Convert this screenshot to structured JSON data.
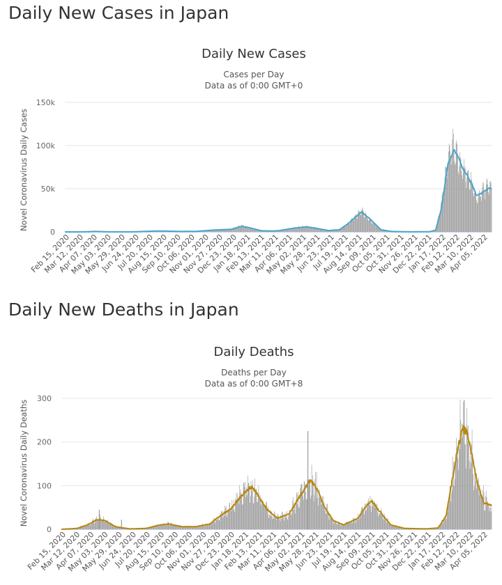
{
  "sections": [
    {
      "heading": "Daily New Cases in Japan"
    },
    {
      "heading": "Daily New Deaths in Japan"
    }
  ],
  "chart_data": [
    {
      "type": "bar",
      "title": "Daily New Cases",
      "subtitle": "Cases per Day",
      "subtitle2": "Data as of 0:00 GMT+0",
      "ylabel": "Novel Coronavirus Daily Cases",
      "ylim": [
        0,
        150000
      ],
      "yticks": [
        0,
        50000,
        100000,
        150000
      ],
      "ytick_labels": [
        "0",
        "50k",
        "100k",
        "150k"
      ],
      "xlabels": [
        "Feb 15, 2020",
        "Mar 12, 2020",
        "Apr 07, 2020",
        "May 03, 2020",
        "May 29, 2020",
        "Jun 24, 2020",
        "Jul 20, 2020",
        "Aug 15, 2020",
        "Sep 10, 2020",
        "Oct 06, 2020",
        "Nov 01, 2020",
        "Nov 27, 2020",
        "Dec 23, 2020",
        "Jan 18, 2021",
        "Feb 13, 2021",
        "Mar 11, 2021",
        "Apr 06, 2021",
        "May 02, 2021",
        "May 28, 2021",
        "Jun 23, 2021",
        "Jul 19, 2021",
        "Aug 14, 2021",
        "Sep 09, 2021",
        "Oct 05, 2021",
        "Oct 31, 2021",
        "Nov 26, 2021",
        "Dec 22, 2021",
        "Jan 17, 2022",
        "Feb 12, 2022",
        "Mar 10, 2022",
        "Apr 05, 2022"
      ],
      "x_start": "2020-02-15",
      "x_end": "2022-04-19",
      "bar_color": "#999999",
      "avg_color": "#4aa4c8",
      "grid": true,
      "legend": "none",
      "series": [
        {
          "kind": "bars",
          "anchors": [
            [
              "2020-02-15",
              0
            ],
            [
              "2020-03-20",
              50
            ],
            [
              "2020-04-12",
              600
            ],
            [
              "2020-05-10",
              80
            ],
            [
              "2020-06-20",
              60
            ],
            [
              "2020-07-25",
              900
            ],
            [
              "2020-08-10",
              1200
            ],
            [
              "2020-09-20",
              500
            ],
            [
              "2020-10-15",
              600
            ],
            [
              "2020-11-20",
              2200
            ],
            [
              "2020-12-20",
              3000
            ],
            [
              "2021-01-09",
              7500
            ],
            [
              "2021-01-20",
              5200
            ],
            [
              "2021-02-15",
              1300
            ],
            [
              "2021-03-10",
              1100
            ],
            [
              "2021-03-20",
              1600
            ],
            [
              "2021-04-15",
              4500
            ],
            [
              "2021-05-10",
              6500
            ],
            [
              "2021-05-25",
              4500
            ],
            [
              "2021-06-20",
              1500
            ],
            [
              "2021-07-10",
              2800
            ],
            [
              "2021-07-25",
              9000
            ],
            [
              "2021-08-20",
              25000
            ],
            [
              "2021-09-05",
              14000
            ],
            [
              "2021-09-25",
              2500
            ],
            [
              "2021-10-15",
              500
            ],
            [
              "2021-11-20",
              100
            ],
            [
              "2021-12-25",
              300
            ],
            [
              "2022-01-05",
              2500
            ],
            [
              "2022-01-15",
              30000
            ],
            [
              "2022-01-28",
              85000
            ],
            [
              "2022-02-05",
              102000
            ],
            [
              "2022-02-15",
              85000
            ],
            [
              "2022-02-25",
              72000
            ],
            [
              "2022-03-05",
              68000
            ],
            [
              "2022-03-15",
              55000
            ],
            [
              "2022-03-22",
              38000
            ],
            [
              "2022-04-01",
              48000
            ],
            [
              "2022-04-15",
              55000
            ],
            [
              "2022-04-19",
              53000
            ]
          ]
        },
        {
          "kind": "line",
          "name": "",
          "anchors": [
            [
              "2020-02-15",
              0
            ],
            [
              "2020-03-20",
              50
            ],
            [
              "2020-04-12",
              550
            ],
            [
              "2020-05-10",
              70
            ],
            [
              "2020-06-20",
              60
            ],
            [
              "2020-07-25",
              850
            ],
            [
              "2020-08-10",
              1100
            ],
            [
              "2020-09-20",
              500
            ],
            [
              "2020-10-15",
              600
            ],
            [
              "2020-11-20",
              2200
            ],
            [
              "2020-12-20",
              3000
            ],
            [
              "2021-01-09",
              6500
            ],
            [
              "2021-01-20",
              5400
            ],
            [
              "2021-02-15",
              1300
            ],
            [
              "2021-03-10",
              1100
            ],
            [
              "2021-03-20",
              1500
            ],
            [
              "2021-04-15",
              4300
            ],
            [
              "2021-05-10",
              5800
            ],
            [
              "2021-05-25",
              4500
            ],
            [
              "2021-06-20",
              1500
            ],
            [
              "2021-07-10",
              2600
            ],
            [
              "2021-07-25",
              9000
            ],
            [
              "2021-08-20",
              23000
            ],
            [
              "2021-09-05",
              15000
            ],
            [
              "2021-09-25",
              2600
            ],
            [
              "2021-10-15",
              500
            ],
            [
              "2021-11-20",
              100
            ],
            [
              "2021-12-25",
              250
            ],
            [
              "2022-01-05",
              2000
            ],
            [
              "2022-01-15",
              25000
            ],
            [
              "2022-01-28",
              78000
            ],
            [
              "2022-02-08",
              95000
            ],
            [
              "2022-02-15",
              88000
            ],
            [
              "2022-02-25",
              73000
            ],
            [
              "2022-03-05",
              65000
            ],
            [
              "2022-03-15",
              53000
            ],
            [
              "2022-03-22",
              42000
            ],
            [
              "2022-04-01",
              45000
            ],
            [
              "2022-04-15",
              51000
            ],
            [
              "2022-04-19",
              50000
            ]
          ]
        }
      ]
    },
    {
      "type": "bar",
      "title": "Daily Deaths",
      "subtitle": "Deaths per Day",
      "subtitle2": "Data as of 0:00 GMT+8",
      "ylabel": "Novel Coronavirus Daily Deaths",
      "ylim": [
        0,
        300
      ],
      "yticks": [
        0,
        100,
        200,
        300
      ],
      "ytick_labels": [
        "0",
        "100",
        "200",
        "300"
      ],
      "xlabels": [
        "Feb 15, 2020",
        "Mar 12, 2020",
        "Apr 07, 2020",
        "May 03, 2020",
        "May 29, 2020",
        "Jun 24, 2020",
        "Jul 20, 2020",
        "Aug 15, 2020",
        "Sep 10, 2020",
        "Oct 06, 2020",
        "Nov 01, 2020",
        "Nov 27, 2020",
        "Dec 23, 2020",
        "Jan 18, 2021",
        "Feb 13, 2021",
        "Mar 11, 2021",
        "Apr 06, 2021",
        "May 02, 2021",
        "May 28, 2021",
        "Jun 23, 2021",
        "Jul 19, 2021",
        "Aug 14, 2021",
        "Sep 09, 2021",
        "Oct 05, 2021",
        "Oct 31, 2021",
        "Nov 26, 2021",
        "Dec 22, 2021",
        "Jan 17, 2022",
        "Feb 12, 2022",
        "Mar 10, 2022",
        "Apr 05, 2022"
      ],
      "x_start": "2020-02-15",
      "x_end": "2022-04-19",
      "bar_color": "#999999",
      "avg_color": "#b8860b",
      "grid": true,
      "legend": "none",
      "series": [
        {
          "kind": "bars",
          "anchors": [
            [
              "2020-02-15",
              0
            ],
            [
              "2020-03-15",
              3
            ],
            [
              "2020-04-05",
              12
            ],
            [
              "2020-04-20",
              25
            ],
            [
              "2020-05-05",
              22
            ],
            [
              "2020-05-25",
              6
            ],
            [
              "2020-06-20",
              1
            ],
            [
              "2020-07-20",
              2
            ],
            [
              "2020-08-15",
              10
            ],
            [
              "2020-09-01",
              13
            ],
            [
              "2020-09-25",
              6
            ],
            [
              "2020-10-20",
              6
            ],
            [
              "2020-11-15",
              12
            ],
            [
              "2020-12-01",
              30
            ],
            [
              "2020-12-25",
              50
            ],
            [
              "2021-01-20",
              90
            ],
            [
              "2021-02-01",
              100
            ],
            [
              "2021-02-15",
              70
            ],
            [
              "2021-03-01",
              45
            ],
            [
              "2021-03-20",
              25
            ],
            [
              "2021-04-10",
              35
            ],
            [
              "2021-05-01",
              80
            ],
            [
              "2021-05-20",
              110
            ],
            [
              "2021-06-01",
              95
            ],
            [
              "2021-06-15",
              50
            ],
            [
              "2021-07-01",
              20
            ],
            [
              "2021-07-20",
              10
            ],
            [
              "2021-08-15",
              25
            ],
            [
              "2021-09-01",
              55
            ],
            [
              "2021-09-10",
              65
            ],
            [
              "2021-09-25",
              40
            ],
            [
              "2021-10-15",
              10
            ],
            [
              "2021-11-10",
              2
            ],
            [
              "2021-12-20",
              1
            ],
            [
              "2022-01-10",
              3
            ],
            [
              "2022-01-25",
              30
            ],
            [
              "2022-02-05",
              110
            ],
            [
              "2022-02-15",
              180
            ],
            [
              "2022-02-25",
              250
            ],
            [
              "2022-03-05",
              230
            ],
            [
              "2022-03-15",
              160
            ],
            [
              "2022-03-25",
              100
            ],
            [
              "2022-04-05",
              70
            ],
            [
              "2022-04-19",
              50
            ]
          ]
        },
        {
          "kind": "line",
          "name": "",
          "anchors": [
            [
              "2020-02-15",
              0
            ],
            [
              "2020-03-15",
              2
            ],
            [
              "2020-04-05",
              11
            ],
            [
              "2020-04-20",
              22
            ],
            [
              "2020-05-05",
              20
            ],
            [
              "2020-05-25",
              6
            ],
            [
              "2020-06-20",
              1
            ],
            [
              "2020-07-20",
              2
            ],
            [
              "2020-08-15",
              10
            ],
            [
              "2020-09-01",
              12
            ],
            [
              "2020-09-25",
              6
            ],
            [
              "2020-10-20",
              6
            ],
            [
              "2020-11-15",
              12
            ],
            [
              "2020-12-01",
              28
            ],
            [
              "2020-12-25",
              48
            ],
            [
              "2021-01-20",
              88
            ],
            [
              "2021-02-01",
              98
            ],
            [
              "2021-02-15",
              72
            ],
            [
              "2021-03-01",
              45
            ],
            [
              "2021-03-20",
              25
            ],
            [
              "2021-04-10",
              35
            ],
            [
              "2021-05-01",
              78
            ],
            [
              "2021-05-20",
              113
            ],
            [
              "2021-06-01",
              92
            ],
            [
              "2021-06-15",
              50
            ],
            [
              "2021-07-01",
              20
            ],
            [
              "2021-07-20",
              10
            ],
            [
              "2021-08-15",
              25
            ],
            [
              "2021-09-01",
              55
            ],
            [
              "2021-09-10",
              65
            ],
            [
              "2021-09-25",
              40
            ],
            [
              "2021-10-15",
              10
            ],
            [
              "2021-11-10",
              2
            ],
            [
              "2021-12-20",
              1
            ],
            [
              "2022-01-10",
              3
            ],
            [
              "2022-01-25",
              30
            ],
            [
              "2022-02-05",
              110
            ],
            [
              "2022-02-15",
              180
            ],
            [
              "2022-02-25",
              232
            ],
            [
              "2022-03-05",
              220
            ],
            [
              "2022-03-15",
              160
            ],
            [
              "2022-03-25",
              100
            ],
            [
              "2022-04-05",
              60
            ],
            [
              "2022-04-19",
              55
            ]
          ]
        },
        {
          "kind": "spikes",
          "points": [
            [
              "2020-04-25",
              45
            ],
            [
              "2020-06-05",
              22
            ],
            [
              "2021-05-15",
              225
            ]
          ]
        }
      ]
    }
  ]
}
